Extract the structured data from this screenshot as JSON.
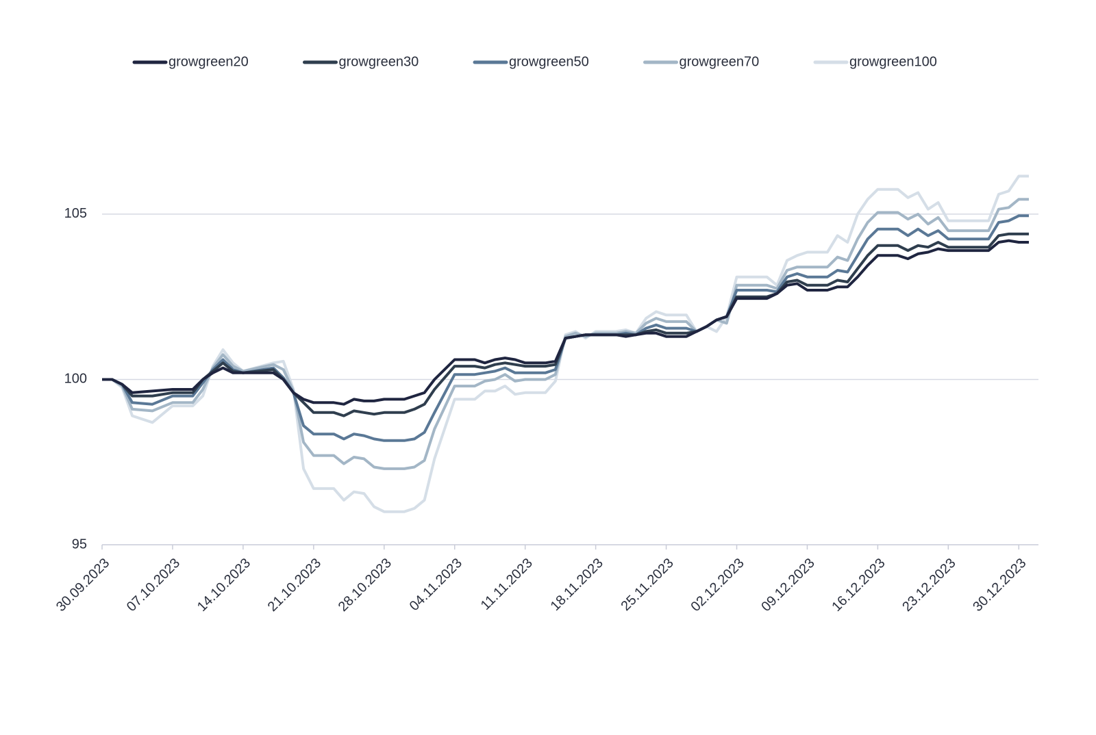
{
  "chart_data": {
    "type": "line",
    "x": [
      "30.09.2023",
      "01.10.2023",
      "02.10.2023",
      "03.10.2023",
      "05.10.2023",
      "07.10.2023",
      "09.10.2023",
      "10.10.2023",
      "11.10.2023",
      "12.10.2023",
      "13.10.2023",
      "14.10.2023",
      "17.10.2023",
      "18.10.2023",
      "19.10.2023",
      "20.10.2023",
      "21.10.2023",
      "23.10.2023",
      "24.10.2023",
      "25.10.2023",
      "26.10.2023",
      "27.10.2023",
      "28.10.2023",
      "30.10.2023",
      "31.10.2023",
      "01.11.2023",
      "02.11.2023",
      "04.11.2023",
      "06.11.2023",
      "07.11.2023",
      "08.11.2023",
      "09.11.2023",
      "10.11.2023",
      "11.11.2023",
      "13.11.2023",
      "14.11.2023",
      "15.11.2023",
      "16.11.2023",
      "17.11.2023",
      "18.11.2023",
      "20.11.2023",
      "21.11.2023",
      "22.11.2023",
      "23.11.2023",
      "24.11.2023",
      "25.11.2023",
      "27.11.2023",
      "28.11.2023",
      "29.11.2023",
      "30.11.2023",
      "01.12.2023",
      "02.12.2023",
      "05.12.2023",
      "06.12.2023",
      "07.12.2023",
      "08.12.2023",
      "09.12.2023",
      "11.12.2023",
      "12.12.2023",
      "13.12.2023",
      "14.12.2023",
      "15.12.2023",
      "16.12.2023",
      "18.12.2023",
      "19.12.2023",
      "20.12.2023",
      "21.12.2023",
      "22.12.2023",
      "23.12.2023",
      "27.12.2023",
      "28.12.2023",
      "29.12.2023",
      "30.12.2023",
      "31.12.2023"
    ],
    "series": [
      {
        "name": "growgreen20",
        "color": "#1f2540",
        "values": [
          100,
          100,
          99.85,
          99.6,
          99.65,
          99.7,
          99.7,
          100.0,
          100.2,
          100.35,
          100.2,
          100.2,
          100.2,
          100.0,
          99.6,
          99.4,
          99.3,
          99.3,
          99.25,
          99.4,
          99.35,
          99.35,
          99.4,
          99.4,
          99.5,
          99.6,
          100.0,
          100.6,
          100.6,
          100.5,
          100.6,
          100.65,
          100.6,
          100.5,
          100.5,
          100.55,
          101.25,
          101.3,
          101.35,
          101.35,
          101.35,
          101.3,
          101.35,
          101.4,
          101.4,
          101.3,
          101.3,
          101.45,
          101.6,
          101.8,
          101.9,
          102.45,
          102.45,
          102.6,
          102.85,
          102.9,
          102.7,
          102.7,
          102.8,
          102.8,
          103.1,
          103.45,
          103.75,
          103.75,
          103.65,
          103.8,
          103.85,
          103.95,
          103.9,
          103.9,
          104.15,
          104.2,
          104.15,
          104.15
        ]
      },
      {
        "name": "growgreen30",
        "color": "#2f3e4e",
        "values": [
          100,
          100,
          99.85,
          99.5,
          99.5,
          99.6,
          99.6,
          100.0,
          100.25,
          100.5,
          100.25,
          100.2,
          100.3,
          100.0,
          99.6,
          99.3,
          99.0,
          99.0,
          98.9,
          99.05,
          99.0,
          98.95,
          99.0,
          99.0,
          99.1,
          99.25,
          99.7,
          100.4,
          100.4,
          100.35,
          100.45,
          100.5,
          100.45,
          100.4,
          100.4,
          100.45,
          101.25,
          101.3,
          101.35,
          101.35,
          101.35,
          101.35,
          101.35,
          101.45,
          101.5,
          101.4,
          101.4,
          101.45,
          101.6,
          101.8,
          101.9,
          102.5,
          102.5,
          102.6,
          102.95,
          103.0,
          102.85,
          102.85,
          103.0,
          102.95,
          103.35,
          103.75,
          104.05,
          104.05,
          103.9,
          104.05,
          104.0,
          104.15,
          104.0,
          104.0,
          104.35,
          104.4,
          104.4,
          104.4
        ]
      },
      {
        "name": "growgreen50",
        "color": "#5a7896",
        "values": [
          100,
          100,
          99.85,
          99.3,
          99.25,
          99.5,
          99.5,
          99.9,
          100.3,
          100.6,
          100.3,
          100.2,
          100.35,
          100.05,
          99.6,
          98.6,
          98.35,
          98.35,
          98.2,
          98.35,
          98.3,
          98.2,
          98.15,
          98.15,
          98.2,
          98.4,
          99.0,
          100.15,
          100.15,
          100.2,
          100.25,
          100.35,
          100.2,
          100.2,
          100.2,
          100.3,
          101.25,
          101.3,
          101.35,
          101.35,
          101.35,
          101.4,
          101.35,
          101.55,
          101.65,
          101.55,
          101.55,
          101.45,
          101.6,
          101.8,
          101.9,
          102.7,
          102.7,
          102.65,
          103.1,
          103.2,
          103.1,
          103.1,
          103.3,
          103.25,
          103.75,
          104.25,
          104.55,
          104.55,
          104.35,
          104.55,
          104.35,
          104.5,
          104.25,
          104.25,
          104.75,
          104.8,
          104.95,
          104.95
        ]
      },
      {
        "name": "growgreen70",
        "color": "#a3b6c6",
        "values": [
          100,
          100,
          99.8,
          99.1,
          99.05,
          99.3,
          99.3,
          99.7,
          100.35,
          100.75,
          100.4,
          100.25,
          100.45,
          100.3,
          99.65,
          98.1,
          97.7,
          97.7,
          97.45,
          97.65,
          97.6,
          97.35,
          97.3,
          97.3,
          97.35,
          97.55,
          98.5,
          99.8,
          99.8,
          99.95,
          100.0,
          100.15,
          99.95,
          100.0,
          100.0,
          100.15,
          101.3,
          101.4,
          101.3,
          101.4,
          101.4,
          101.45,
          101.4,
          101.7,
          101.85,
          101.75,
          101.75,
          101.45,
          101.6,
          101.8,
          101.7,
          102.85,
          102.85,
          102.75,
          103.3,
          103.4,
          103.4,
          103.4,
          103.7,
          103.6,
          104.25,
          104.75,
          105.05,
          105.05,
          104.85,
          105.0,
          104.7,
          104.9,
          104.5,
          104.5,
          105.15,
          105.2,
          105.45,
          105.45
        ]
      },
      {
        "name": "growgreen100",
        "color": "#d5dee7",
        "values": [
          100,
          100,
          99.75,
          98.9,
          98.7,
          99.2,
          99.2,
          99.5,
          100.4,
          100.9,
          100.5,
          100.25,
          100.5,
          100.55,
          99.7,
          97.3,
          96.7,
          96.7,
          96.35,
          96.6,
          96.55,
          96.15,
          96.0,
          96.0,
          96.1,
          96.35,
          97.6,
          99.4,
          99.4,
          99.65,
          99.65,
          99.8,
          99.55,
          99.6,
          99.6,
          99.95,
          101.35,
          101.45,
          101.25,
          101.45,
          101.45,
          101.5,
          101.4,
          101.85,
          102.05,
          101.95,
          101.95,
          101.45,
          101.6,
          101.45,
          101.9,
          103.1,
          103.1,
          102.85,
          103.6,
          103.75,
          103.85,
          103.85,
          104.35,
          104.15,
          105.0,
          105.45,
          105.75,
          105.75,
          105.5,
          105.65,
          105.15,
          105.35,
          104.8,
          104.8,
          105.6,
          105.7,
          106.15,
          106.15
        ]
      }
    ],
    "xlim": [
      "30.09.2023",
      "31.12.2023"
    ],
    "xticks": [
      "30.09.2023",
      "07.10.2023",
      "14.10.2023",
      "21.10.2023",
      "28.10.2023",
      "04.11.2023",
      "11.11.2023",
      "18.11.2023",
      "25.11.2023",
      "02.12.2023",
      "09.12.2023",
      "16.12.2023",
      "23.12.2023",
      "30.12.2023"
    ],
    "ylim": [
      95,
      108
    ],
    "yticks": [
      95,
      100,
      105
    ],
    "grid": true,
    "legend": "top"
  }
}
